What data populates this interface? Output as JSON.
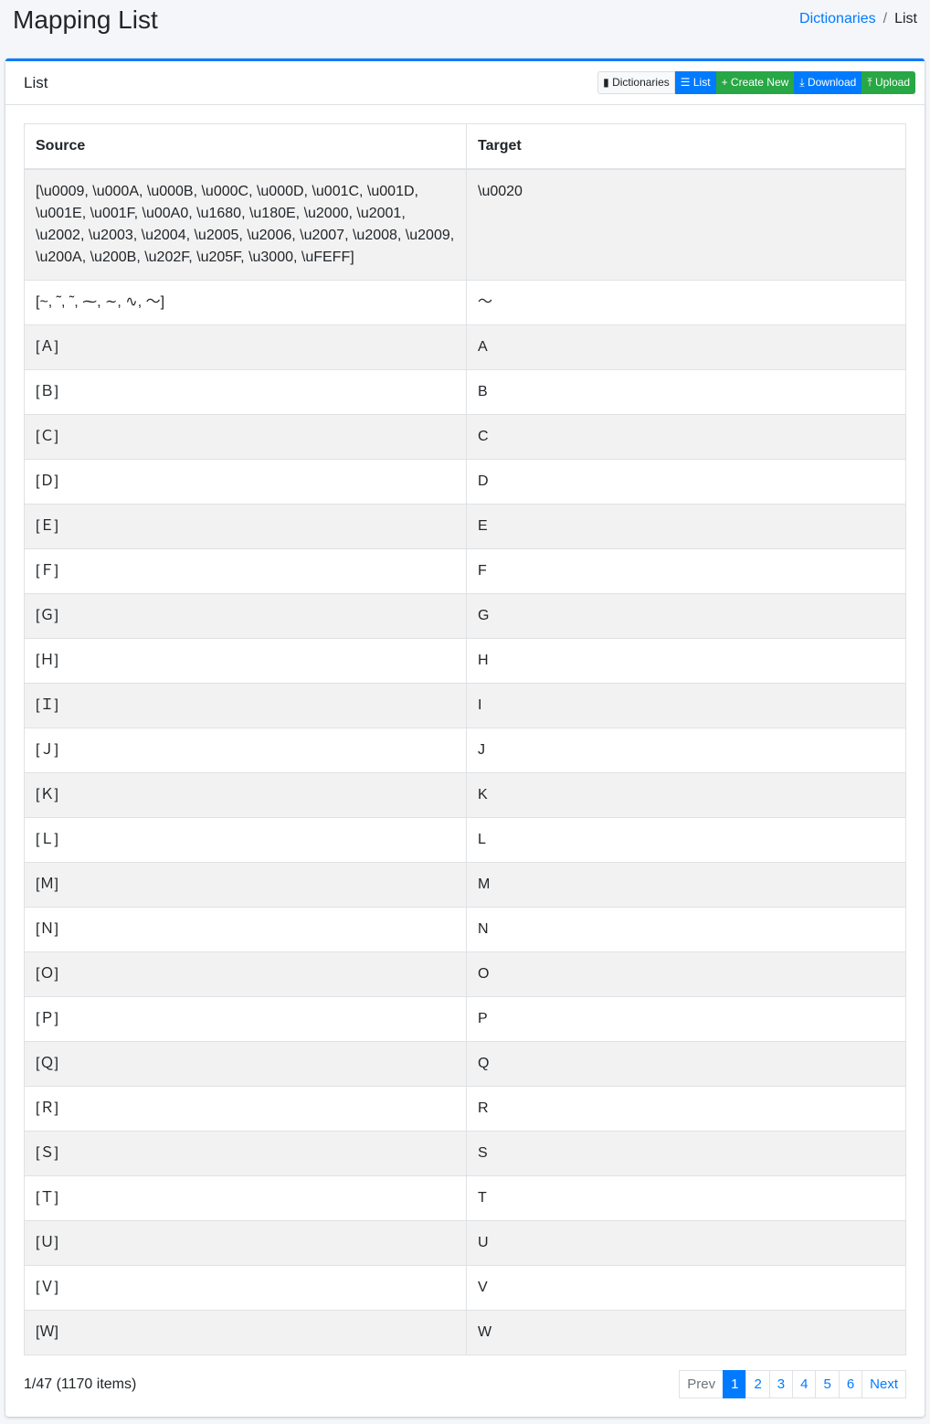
{
  "header": {
    "title": "Mapping List",
    "breadcrumb": [
      "Dictionaries",
      "List"
    ]
  },
  "card": {
    "title": "List",
    "buttons": [
      {
        "label": "Dictionaries",
        "icon": "book-icon",
        "symbol": "▮"
      },
      {
        "label": "List",
        "icon": "list-icon",
        "symbol": "☰"
      },
      {
        "label": "Create New",
        "icon": "plus-icon",
        "symbol": "+"
      },
      {
        "label": "Download",
        "icon": "download-icon",
        "symbol": "⤓"
      },
      {
        "label": "Upload",
        "icon": "upload-icon",
        "symbol": "⤒"
      }
    ]
  },
  "table": {
    "columns": [
      "Source",
      "Target"
    ],
    "rows": [
      [
        "[\\u0009, \\u000A, \\u000B, \\u000C, \\u000D, \\u001C, \\u001D, \\u001E, \\u001F, \\u00A0, \\u1680, \\u180E, \\u2000, \\u2001, \\u2002, \\u2003, \\u2004, \\u2005, \\u2006, \\u2007, \\u2008, \\u2009, \\u200A, \\u200B, \\u202F, \\u205F, \\u3000, \\uFEFF]",
        "\\u0020"
      ],
      [
        "[~, ˜, ˜, ⁓, ∼, ∿, 〜]",
        "〜"
      ],
      [
        "[Ａ]",
        "A"
      ],
      [
        "[Ｂ]",
        "B"
      ],
      [
        "[Ｃ]",
        "C"
      ],
      [
        "[Ｄ]",
        "D"
      ],
      [
        "[Ｅ]",
        "E"
      ],
      [
        "[Ｆ]",
        "F"
      ],
      [
        "[Ｇ]",
        "G"
      ],
      [
        "[Ｈ]",
        "H"
      ],
      [
        "[Ｉ]",
        "I"
      ],
      [
        "[Ｊ]",
        "J"
      ],
      [
        "[Ｋ]",
        "K"
      ],
      [
        "[Ｌ]",
        "L"
      ],
      [
        "[Ｍ]",
        "M"
      ],
      [
        "[Ｎ]",
        "N"
      ],
      [
        "[Ｏ]",
        "O"
      ],
      [
        "[Ｐ]",
        "P"
      ],
      [
        "[Ｑ]",
        "Q"
      ],
      [
        "[Ｒ]",
        "R"
      ],
      [
        "[Ｓ]",
        "S"
      ],
      [
        "[Ｔ]",
        "T"
      ],
      [
        "[Ｕ]",
        "U"
      ],
      [
        "[Ｖ]",
        "V"
      ],
      [
        "[Ｗ]",
        "W"
      ]
    ]
  },
  "footer": {
    "summary": "1/47 (1170 items)",
    "pagination": {
      "prev": "Prev",
      "pages": [
        "1",
        "2",
        "3",
        "4",
        "5",
        "6"
      ],
      "current": "1",
      "next": "Next"
    }
  }
}
